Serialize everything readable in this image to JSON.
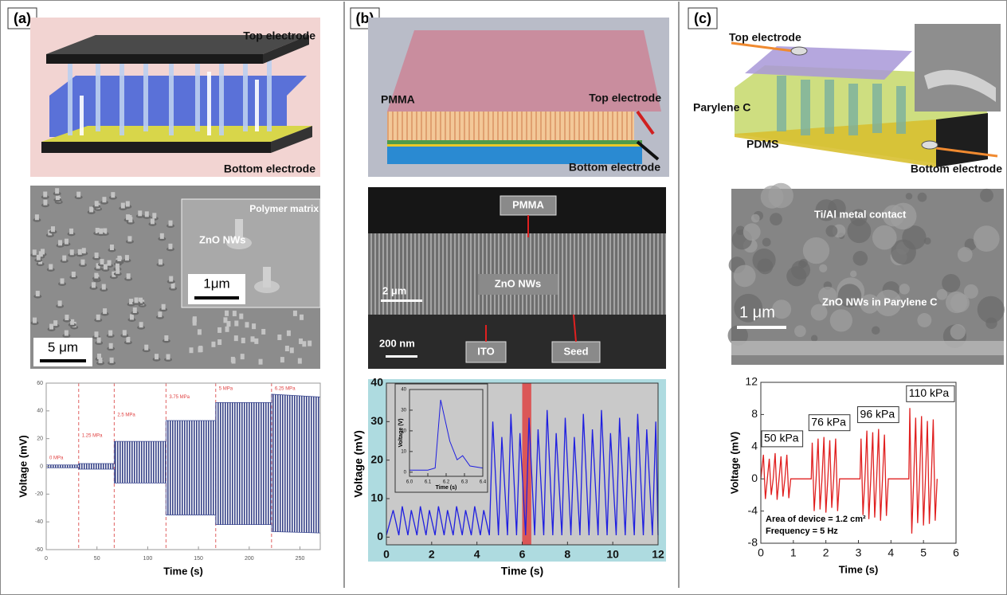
{
  "panels": [
    {
      "label": "(a)",
      "schematic_labels": [
        "Top electrode",
        "Bottom electrode"
      ],
      "sem_labels": [
        "Polymer matrix",
        "ZnO NWs",
        "1μm",
        "5 μm"
      ]
    },
    {
      "label": "(b)",
      "schematic_labels": [
        "PMMA",
        "Top electrode",
        "Bottom electrode"
      ],
      "sem_labels": [
        "PMMA",
        "2 μm",
        "ZnO NWs",
        "200 nm",
        "ITO",
        "Seed"
      ]
    },
    {
      "label": "(c)",
      "schematic_labels": [
        "Top electrode",
        "Parylene C",
        "PDMS",
        "Bottom electrode"
      ],
      "sem_labels": [
        "Ti/Al metal contact",
        "1 μm",
        "ZnO NWs in Parylene C"
      ]
    }
  ],
  "chart_data": [
    {
      "type": "area",
      "xlabel": "Time (s)",
      "ylabel": "Voltage (mV)",
      "xlim": [
        0,
        270
      ],
      "ylim": [
        -60,
        60
      ],
      "xticks": [
        0,
        50,
        100,
        150,
        200,
        250
      ],
      "yticks": [
        -60,
        -40,
        -20,
        0,
        20,
        40,
        60
      ],
      "color": "#3a4790",
      "markers": [
        32,
        67,
        118,
        167,
        222
      ],
      "marker_color": "#e06060",
      "pressure_labels": [
        "0 MPa",
        "1.25 MPa",
        "2.5 MPa",
        "3.75 MPa",
        "5 MPa",
        "6.25 MPa"
      ],
      "series": [
        {
          "x": [
            0,
            32,
            32,
            67,
            67,
            118,
            118,
            167,
            167,
            222,
            222,
            270
          ],
          "values": [
            1,
            1,
            2,
            2,
            18,
            18,
            33,
            33,
            46,
            46,
            52,
            50
          ]
        },
        {
          "x": [
            0,
            32,
            32,
            67,
            67,
            118,
            118,
            167,
            167,
            222,
            222,
            270
          ],
          "values": [
            -1,
            -1,
            -2,
            -2,
            -12,
            -12,
            -35,
            -35,
            -42,
            -42,
            -47,
            -48
          ]
        }
      ]
    },
    {
      "type": "line",
      "xlabel": "Time (s)",
      "ylabel": "Voltage (mV)",
      "xlim": [
        0,
        12
      ],
      "ylim": [
        -2,
        40
      ],
      "xticks": [
        0,
        2,
        4,
        6,
        8,
        10,
        12
      ],
      "yticks": [
        0,
        10,
        20,
        30,
        40
      ],
      "color": "#1f1fe0",
      "highlight": [
        6.0,
        6.4
      ],
      "highlight_color": "#e03030",
      "x": [
        0,
        0.3,
        0.55,
        0.7,
        0.95,
        1.1,
        1.35,
        1.5,
        1.75,
        1.9,
        2.15,
        2.3,
        2.55,
        2.7,
        2.95,
        3.1,
        3.35,
        3.5,
        3.75,
        3.9,
        4.15,
        4.3,
        4.55,
        4.7,
        4.95,
        5.1,
        5.35,
        5.5,
        5.75,
        5.9,
        6.15,
        6.3,
        6.55,
        6.7,
        6.95,
        7.1,
        7.35,
        7.5,
        7.75,
        7.9,
        8.15,
        8.3,
        8.55,
        8.7,
        8.95,
        9.1,
        9.35,
        9.5,
        9.75,
        9.9,
        10.15,
        10.3,
        10.55,
        10.7,
        10.95,
        11.1,
        11.35,
        11.5,
        11.75,
        11.9,
        12
      ],
      "values": [
        0.5,
        7,
        0.5,
        8,
        0.5,
        7,
        0.5,
        8,
        0.5,
        7,
        0.5,
        8,
        0.5,
        7,
        0.5,
        8,
        0.5,
        7,
        0.5,
        8,
        0.5,
        7,
        0.5,
        30,
        0.5,
        26,
        0.5,
        32,
        0.5,
        27,
        0.5,
        31,
        0.5,
        28,
        0.5,
        33,
        0.5,
        27,
        0.5,
        31,
        0.5,
        26,
        0.5,
        32,
        0.5,
        28,
        0.5,
        33,
        0.5,
        27,
        0.5,
        31,
        0.5,
        26,
        0.5,
        32,
        0.5,
        28,
        0.5,
        30,
        0.5
      ]
    },
    {
      "type": "line",
      "xlabel": "Time (s)",
      "ylabel": "Voltage (V)",
      "xlim": [
        6.0,
        6.4
      ],
      "ylim": [
        -2,
        40
      ],
      "xticks": [
        {
          "value": 6.0,
          "label": "6.0"
        },
        {
          "value": 6.1,
          "label": "6.1"
        },
        {
          "value": 6.2,
          "label": "6.2"
        },
        {
          "value": 6.3,
          "label": "6.3"
        },
        {
          "value": 6.4,
          "label": "6.4"
        }
      ],
      "yticks": [
        0,
        10,
        20,
        30,
        40
      ],
      "color": "#1f1fe0",
      "x": [
        6.0,
        6.1,
        6.14,
        6.17,
        6.22,
        6.26,
        6.29,
        6.33,
        6.4
      ],
      "values": [
        1,
        1,
        2,
        35,
        15,
        6,
        8,
        3,
        2
      ]
    },
    {
      "type": "line",
      "xlabel": "Time (s)",
      "ylabel": "Voltage (mV)",
      "xlim": [
        0,
        6
      ],
      "ylim": [
        -8,
        12
      ],
      "xticks": [
        0,
        1,
        2,
        3,
        4,
        5,
        6
      ],
      "yticks": [
        -8,
        -4,
        0,
        4,
        8,
        12
      ],
      "color": "#e02020",
      "group_labels": [
        "50 kPa",
        "76 kPa",
        "96 kPa",
        "110 kPa"
      ],
      "notes": [
        "Area of device = 1.2 cm²",
        "Frequency = 5 Hz"
      ],
      "x": [
        0,
        0.08,
        0.14,
        0.2,
        0.26,
        0.32,
        0.38,
        0.44,
        0.5,
        0.56,
        0.62,
        0.68,
        0.74,
        0.8,
        0.86,
        0.92,
        1.55,
        1.58,
        1.64,
        1.7,
        1.76,
        1.82,
        1.88,
        1.94,
        2.0,
        2.06,
        2.12,
        2.18,
        2.24,
        2.3,
        2.36,
        2.42,
        3.05,
        3.08,
        3.14,
        3.2,
        3.26,
        3.32,
        3.38,
        3.44,
        3.5,
        3.56,
        3.62,
        3.68,
        3.74,
        3.8,
        3.86,
        3.92,
        4.55,
        4.58,
        4.64,
        4.7,
        4.76,
        4.82,
        4.88,
        4.94,
        5.0,
        5.06,
        5.12,
        5.18,
        5.24,
        5.3,
        5.36,
        5.42
      ],
      "values": [
        0,
        3,
        -2.5,
        0,
        2.5,
        -2,
        0,
        3.2,
        -2.6,
        0,
        2.8,
        -2.2,
        0,
        3,
        -2.4,
        0,
        0,
        4.5,
        -4,
        0,
        5,
        -3.8,
        0,
        5.2,
        -4.2,
        0,
        4.8,
        -3.6,
        0,
        5,
        -4,
        0,
        0,
        5,
        -4.5,
        0,
        6,
        -5,
        0,
        5.8,
        -4.8,
        0,
        6.2,
        -5.2,
        0,
        5.5,
        -4.6,
        0,
        0,
        8.8,
        -6.8,
        0,
        7.6,
        -5.5,
        0,
        7.8,
        -5.8,
        0,
        7.2,
        -5.6,
        0,
        7.4,
        -5.2,
        0
      ]
    }
  ]
}
